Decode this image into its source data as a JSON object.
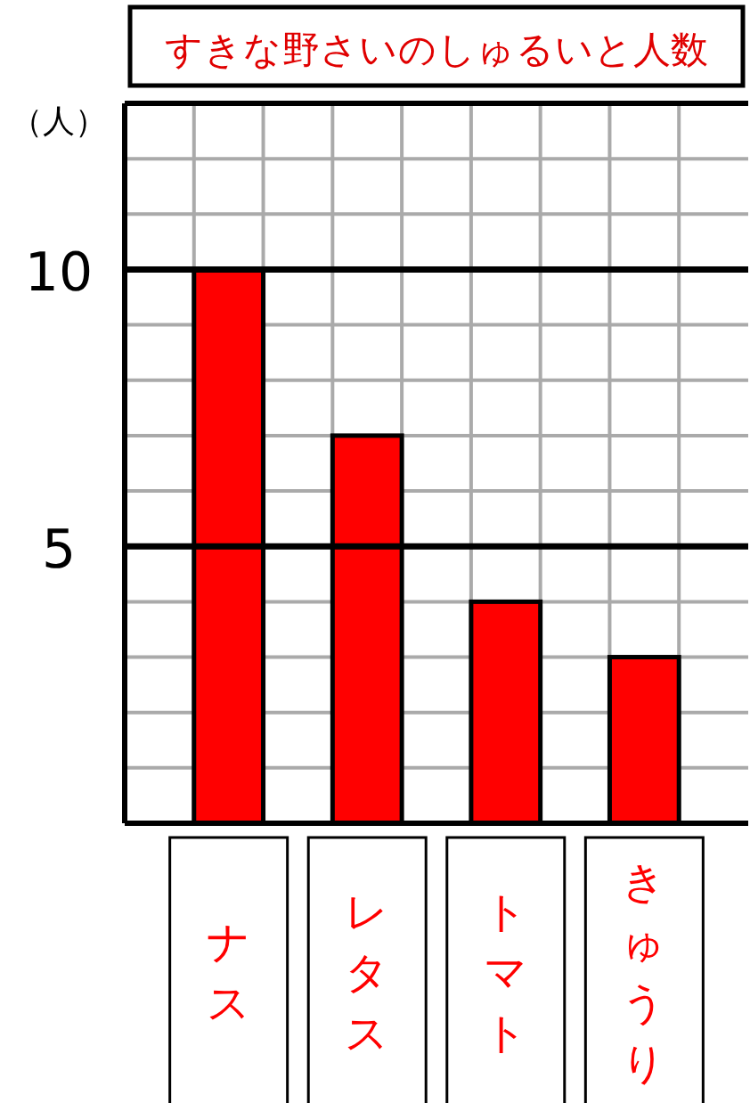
{
  "chart_data": {
    "type": "bar",
    "title": "すきな野さいのしゅるいと人数",
    "ylabel": "（人）",
    "categories": [
      "ナス",
      "レタス",
      "トマト",
      "きゅうり"
    ],
    "values": [
      10,
      7,
      4,
      3
    ],
    "color": "#ff0000",
    "ylim": [
      0,
      13
    ],
    "yticks": [
      {
        "value": 1,
        "label": null
      },
      {
        "value": 2,
        "label": null
      },
      {
        "value": 3,
        "label": null
      },
      {
        "value": 4,
        "label": null
      },
      5,
      {
        "value": 6,
        "label": null
      },
      {
        "value": 7,
        "label": null
      },
      {
        "value": 8,
        "label": null
      },
      {
        "value": 9,
        "label": null
      },
      10,
      {
        "value": 11,
        "label": null
      },
      {
        "value": 12,
        "label": null
      },
      {
        "value": 13,
        "label": null
      }
    ],
    "grid": true
  }
}
